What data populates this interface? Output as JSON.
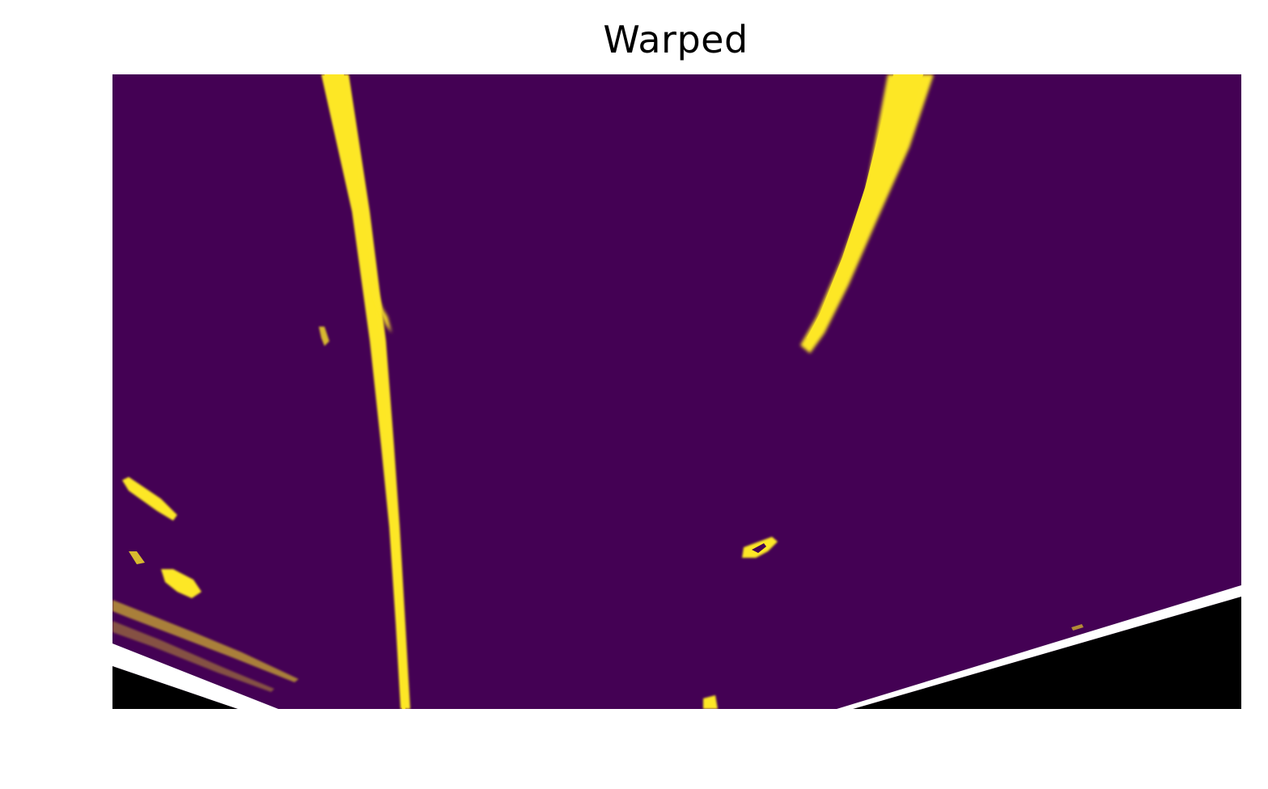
{
  "figure": {
    "title": "Warped"
  },
  "colors": {
    "background_fill": "#440154",
    "lane_line": "#fde725",
    "outside_region": "#000000",
    "border_band": "#ffffff",
    "figure_background": "#ffffff"
  }
}
